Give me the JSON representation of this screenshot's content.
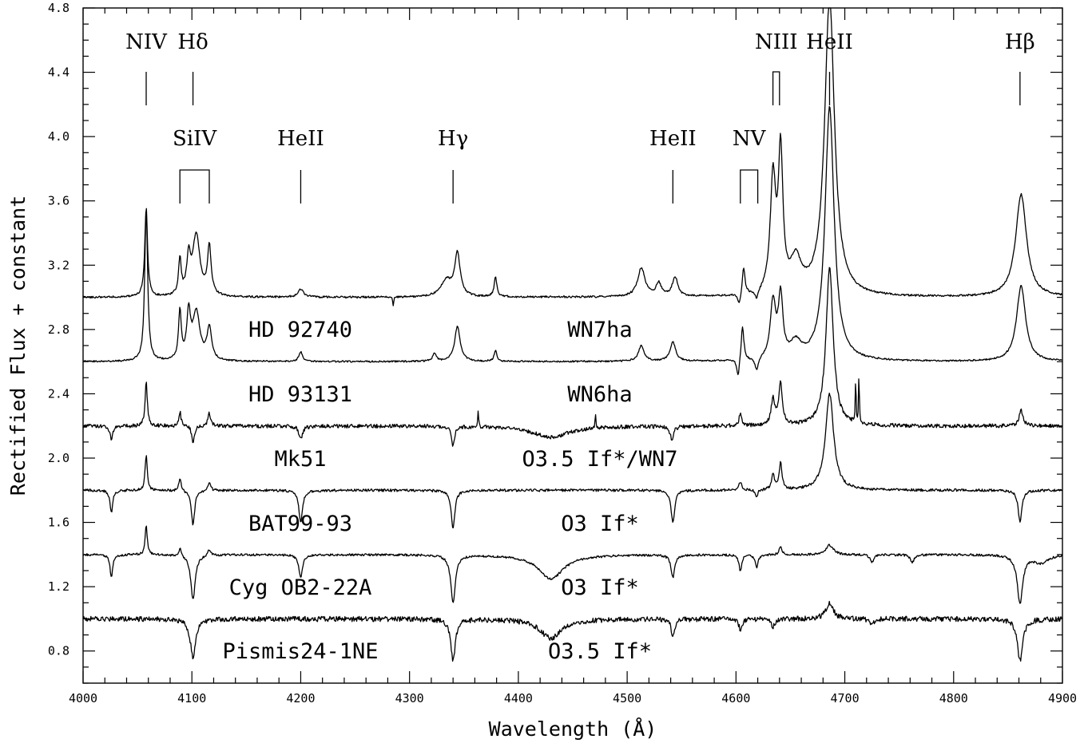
{
  "chart_data": {
    "type": "line",
    "xlabel": "Wavelength (Å)",
    "ylabel": "Rectified Flux + constant",
    "xlim": [
      4000,
      4900
    ],
    "ylim": [
      0.6,
      4.8
    ],
    "x_ticks": [
      "4000",
      "4100",
      "4200",
      "4300",
      "4400",
      "4500",
      "4600",
      "4700",
      "4800",
      "4900"
    ],
    "y_ticks": [
      "0.8",
      "1.2",
      "1.6",
      "2.0",
      "2.4",
      "2.8",
      "3.2",
      "3.6",
      "4.0",
      "4.4",
      "4.8"
    ],
    "line_identifications": [
      {
        "label": "NIV",
        "wavelength": 4058,
        "row": "upper"
      },
      {
        "label": "Hδ",
        "wavelength": 4101,
        "row": "upper"
      },
      {
        "label": "SiIV",
        "wavelengths": [
          4089,
          4116
        ],
        "row": "lower"
      },
      {
        "label": "HeII",
        "wavelength": 4200,
        "row": "lower"
      },
      {
        "label": "Hγ",
        "wavelength": 4340,
        "row": "lower"
      },
      {
        "label": "HeII",
        "wavelength": 4542,
        "row": "lower"
      },
      {
        "label": "NV",
        "wavelengths": [
          4604,
          4620
        ],
        "row": "lower"
      },
      {
        "label": "NIII",
        "wavelengths": [
          4634,
          4640
        ],
        "row": "upper"
      },
      {
        "label": "HeII",
        "wavelength": 4686,
        "row": "upper"
      },
      {
        "label": "Hβ",
        "wavelength": 4861,
        "row": "upper"
      }
    ],
    "series": [
      {
        "name": "HD 92740",
        "spectral_type": "WN7ha",
        "offset": 3.0
      },
      {
        "name": "HD 93131",
        "spectral_type": "WN6ha",
        "offset": 2.6
      },
      {
        "name": "Mk51",
        "spectral_type": "O3.5 If*/WN7",
        "offset": 2.2
      },
      {
        "name": "BAT99-93",
        "spectral_type": "O3 If*",
        "offset": 1.8
      },
      {
        "name": "Cyg OB2-22A",
        "spectral_type": "O3 If*",
        "offset": 1.4
      },
      {
        "name": "Pismis24-1NE",
        "spectral_type": "O3.5 If*",
        "offset": 1.0
      }
    ],
    "spectral_features": [
      [
        {
          "center": 4058,
          "amplitude": 0.56,
          "width": 1.5
        },
        {
          "center": 4089,
          "amplitude": 0.22,
          "width": 1.5
        },
        {
          "center": 4097,
          "amplitude": 0.22,
          "width": 2
        },
        {
          "center": 4104,
          "amplitude": 0.38,
          "width": 4
        },
        {
          "center": 4116,
          "amplitude": 0.3,
          "width": 2
        },
        {
          "center": 4200,
          "amplitude": 0.05,
          "width": 3
        },
        {
          "center": 4285,
          "amplitude": -0.06,
          "width": 0.5
        },
        {
          "center": 4334,
          "amplitude": 0.1,
          "width": 6
        },
        {
          "center": 4344,
          "amplitude": 0.26,
          "width": 3
        },
        {
          "center": 4379,
          "amplitude": 0.12,
          "width": 1.5
        },
        {
          "center": 4513,
          "amplitude": 0.18,
          "width": 4
        },
        {
          "center": 4529,
          "amplitude": 0.08,
          "width": 3
        },
        {
          "center": 4544,
          "amplitude": 0.12,
          "width": 3
        },
        {
          "center": 4603,
          "amplitude": -0.08,
          "width": 1.5
        },
        {
          "center": 4607,
          "amplitude": 0.17,
          "width": 1.5
        },
        {
          "center": 4619,
          "amplitude": -0.06,
          "width": 2
        },
        {
          "center": 4634,
          "amplitude": 0.7,
          "width": 3
        },
        {
          "center": 4641,
          "amplitude": 0.85,
          "width": 2.5
        },
        {
          "center": 4655,
          "amplitude": 0.2,
          "width": 6
        },
        {
          "center": 4686,
          "amplitude": 1.85,
          "width": 5.5
        },
        {
          "center": 4862,
          "amplitude": 0.64,
          "width": 6
        }
      ],
      [
        {
          "center": 4058,
          "amplitude": 0.95,
          "width": 1.6
        },
        {
          "center": 4089,
          "amplitude": 0.3,
          "width": 1.5
        },
        {
          "center": 4097,
          "amplitude": 0.28,
          "width": 2
        },
        {
          "center": 4104,
          "amplitude": 0.3,
          "width": 4
        },
        {
          "center": 4116,
          "amplitude": 0.2,
          "width": 2.5
        },
        {
          "center": 4200,
          "amplitude": 0.06,
          "width": 2
        },
        {
          "center": 4323,
          "amplitude": 0.05,
          "width": 2
        },
        {
          "center": 4344,
          "amplitude": 0.22,
          "width": 3
        },
        {
          "center": 4379,
          "amplitude": 0.07,
          "width": 1.5
        },
        {
          "center": 4513,
          "amplitude": 0.1,
          "width": 3
        },
        {
          "center": 4542,
          "amplitude": 0.12,
          "width": 3
        },
        {
          "center": 4602,
          "amplitude": -0.12,
          "width": 1.5
        },
        {
          "center": 4606,
          "amplitude": 0.22,
          "width": 1.5
        },
        {
          "center": 4619,
          "amplitude": -0.08,
          "width": 2
        },
        {
          "center": 4634,
          "amplitude": 0.35,
          "width": 3
        },
        {
          "center": 4641,
          "amplitude": 0.38,
          "width": 2.5
        },
        {
          "center": 4655,
          "amplitude": 0.1,
          "width": 6
        },
        {
          "center": 4686,
          "amplitude": 1.58,
          "width": 5
        },
        {
          "center": 4862,
          "amplitude": 0.47,
          "width": 5
        }
      ],
      [
        {
          "center": 4026,
          "amplitude": -0.08,
          "width": 1.5
        },
        {
          "center": 4058,
          "amplitude": 0.28,
          "width": 1.2
        },
        {
          "center": 4089,
          "amplitude": 0.09,
          "width": 1.2
        },
        {
          "center": 4101,
          "amplitude": -0.1,
          "width": 1.5
        },
        {
          "center": 4116,
          "amplitude": 0.08,
          "width": 1.5
        },
        {
          "center": 4200,
          "amplitude": -0.08,
          "width": 2
        },
        {
          "center": 4340,
          "amplitude": -0.12,
          "width": 1.5
        },
        {
          "center": 4363,
          "amplitude": 0.09,
          "width": 0.5
        },
        {
          "center": 4430,
          "amplitude": -0.07,
          "width": 20
        },
        {
          "center": 4471,
          "amplitude": 0.09,
          "width": 0.5
        },
        {
          "center": 4541,
          "amplitude": -0.08,
          "width": 2
        },
        {
          "center": 4604,
          "amplitude": 0.07,
          "width": 1.5
        },
        {
          "center": 4634,
          "amplitude": 0.16,
          "width": 2
        },
        {
          "center": 4641,
          "amplitude": 0.26,
          "width": 2
        },
        {
          "center": 4686,
          "amplitude": 0.98,
          "width": 4
        },
        {
          "center": 4710,
          "amplitude": 0.3,
          "width": 0.4
        },
        {
          "center": 4713,
          "amplitude": 0.32,
          "width": 0.4
        },
        {
          "center": 4862,
          "amplitude": 0.1,
          "width": 2
        }
      ],
      [
        {
          "center": 4026,
          "amplitude": -0.14,
          "width": 1.5
        },
        {
          "center": 4058,
          "amplitude": 0.22,
          "width": 1.2
        },
        {
          "center": 4089,
          "amplitude": 0.08,
          "width": 1.2
        },
        {
          "center": 4101,
          "amplitude": -0.22,
          "width": 1.8
        },
        {
          "center": 4116,
          "amplitude": 0.05,
          "width": 1.5
        },
        {
          "center": 4200,
          "amplitude": -0.2,
          "width": 2
        },
        {
          "center": 4340,
          "amplitude": -0.24,
          "width": 2
        },
        {
          "center": 4542,
          "amplitude": -0.2,
          "width": 2
        },
        {
          "center": 4604,
          "amplitude": 0.05,
          "width": 1.5
        },
        {
          "center": 4619,
          "amplitude": -0.04,
          "width": 1.5
        },
        {
          "center": 4634,
          "amplitude": 0.1,
          "width": 1.5
        },
        {
          "center": 4641,
          "amplitude": 0.17,
          "width": 1.5
        },
        {
          "center": 4686,
          "amplitude": 0.6,
          "width": 4.5
        },
        {
          "center": 4861,
          "amplitude": -0.2,
          "width": 2
        }
      ],
      [
        {
          "center": 4026,
          "amplitude": -0.14,
          "width": 1.5
        },
        {
          "center": 4058,
          "amplitude": 0.18,
          "width": 1.2
        },
        {
          "center": 4089,
          "amplitude": 0.05,
          "width": 1.2
        },
        {
          "center": 4101,
          "amplitude": -0.28,
          "width": 2.5
        },
        {
          "center": 4116,
          "amplitude": 0.04,
          "width": 1.5
        },
        {
          "center": 4200,
          "amplitude": -0.14,
          "width": 2
        },
        {
          "center": 4340,
          "amplitude": -0.3,
          "width": 2.5
        },
        {
          "center": 4430,
          "amplitude": -0.15,
          "width": 14
        },
        {
          "center": 4542,
          "amplitude": -0.14,
          "width": 2
        },
        {
          "center": 4604,
          "amplitude": -0.1,
          "width": 1.5
        },
        {
          "center": 4619,
          "amplitude": -0.08,
          "width": 1.5
        },
        {
          "center": 4641,
          "amplitude": 0.05,
          "width": 1.5
        },
        {
          "center": 4686,
          "amplitude": 0.06,
          "width": 4
        },
        {
          "center": 4725,
          "amplitude": -0.05,
          "width": 2
        },
        {
          "center": 4762,
          "amplitude": -0.05,
          "width": 2
        },
        {
          "center": 4861,
          "amplitude": -0.3,
          "width": 3
        },
        {
          "center": 4880,
          "amplitude": -0.05,
          "width": 8
        }
      ],
      [
        {
          "center": 4101,
          "amplitude": -0.24,
          "width": 3
        },
        {
          "center": 4340,
          "amplitude": -0.26,
          "width": 2.5
        },
        {
          "center": 4430,
          "amplitude": -0.12,
          "width": 12
        },
        {
          "center": 4542,
          "amplitude": -0.1,
          "width": 2
        },
        {
          "center": 4604,
          "amplitude": -0.06,
          "width": 2
        },
        {
          "center": 4634,
          "amplitude": -0.05,
          "width": 2
        },
        {
          "center": 4686,
          "amplitude": 0.1,
          "width": 4
        },
        {
          "center": 4725,
          "amplitude": -0.04,
          "width": 2
        },
        {
          "center": 4861,
          "amplitude": -0.26,
          "width": 3
        }
      ]
    ]
  }
}
